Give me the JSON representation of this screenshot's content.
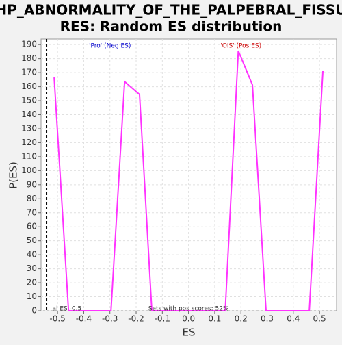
{
  "chart_data": {
    "type": "line",
    "title": [
      "HP_ABNORMALITY_OF_THE_PALPEBRAL_FISSU",
      "RES: Random ES distribution"
    ],
    "x_label": "ES",
    "y_label": "P(ES)",
    "annotations": [
      {
        "text": "'Pro' (Neg ES)",
        "x": -0.3,
        "y": 189,
        "color": "#0000cc"
      },
      {
        "text": "'OIS' (Pos ES)",
        "x": 0.2,
        "y": 189,
        "color": "#cc0000"
      },
      {
        "text": "Sets with pos scores: 52%",
        "x": 0.0,
        "y": 1.5,
        "color": "#333333"
      },
      {
        "text": "al ES -0.5",
        "x": -0.52,
        "y": 1.5,
        "color": "#333333"
      }
    ],
    "marker_x": -0.542,
    "x": [
      -0.513,
      -0.458,
      -0.296,
      -0.244,
      -0.187,
      -0.14,
      0.14,
      0.19,
      0.244,
      0.296,
      0.461,
      0.513
    ],
    "series": [
      {
        "name": "Random ES",
        "color": "#ff33ff",
        "values": [
          166.6,
          0,
          0,
          163.6,
          154.4,
          0,
          0,
          185.6,
          161.2,
          0,
          0,
          171.5
        ]
      }
    ],
    "xlim": [
      -0.563,
      0.565
    ],
    "ylim": [
      0,
      194
    ],
    "xticks": [
      -0.5,
      -0.4,
      -0.3,
      -0.2,
      -0.1,
      {
        "value": 0,
        "label": "0.0"
      },
      0.1,
      0.2,
      0.3,
      0.4,
      0.5
    ],
    "yticks": [
      0,
      10,
      20,
      30,
      40,
      50,
      60,
      70,
      80,
      90,
      100,
      110,
      120,
      130,
      140,
      150,
      160,
      170,
      180,
      190
    ],
    "grid": true
  }
}
